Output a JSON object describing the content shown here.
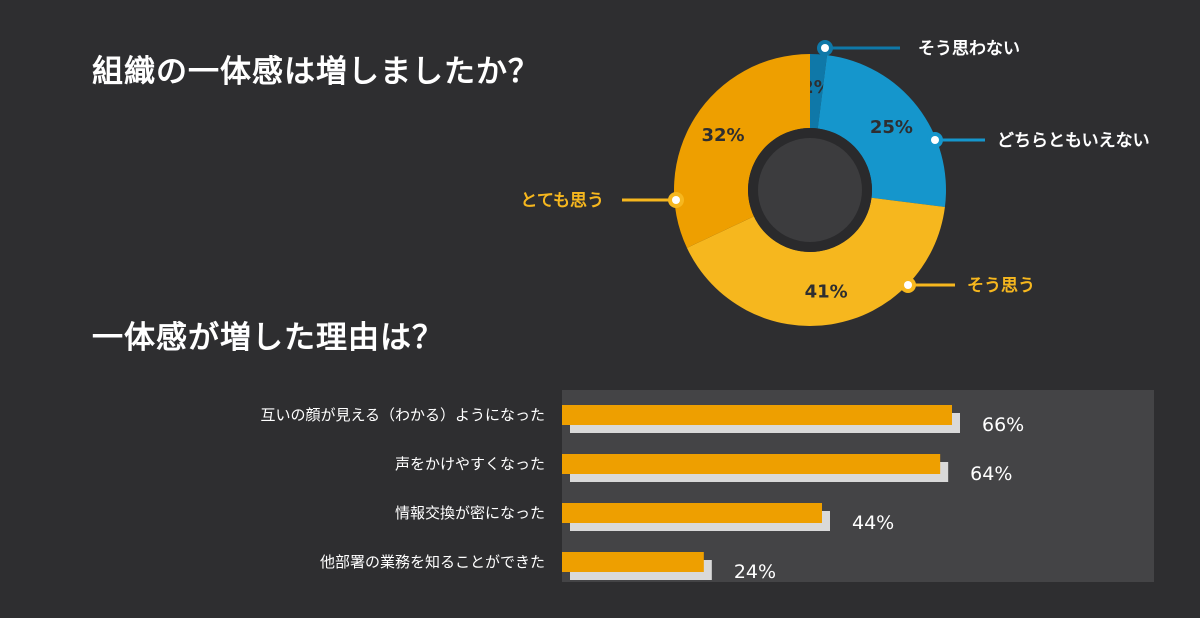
{
  "titles": {
    "q1": "組織の一体感は増しましたか？",
    "q2": "一体感が増した理由は？"
  },
  "colors": {
    "background": "#2e2e30",
    "panel": "#444446",
    "blue": "#1596cc",
    "blue_dark": "#0f78a8",
    "yellow": "#f6b71e",
    "orange": "#ee9f00",
    "bar_orange": "#ee9f00",
    "bar_shadow": "#d9d9d9",
    "hole": "#3c3c3e",
    "hole_ring": "#2a2a2c"
  },
  "chart_data": [
    {
      "type": "pie",
      "donut": true,
      "title": "組織の一体感は増しましたか？",
      "slices": [
        {
          "label": "そう思わない",
          "value": 2,
          "value_label": "2%",
          "color": "#0f78a8",
          "label_color": "#ffffff"
        },
        {
          "label": "どちらともいえない",
          "value": 25,
          "value_label": "25%",
          "color": "#1596cc",
          "label_color": "#ffffff"
        },
        {
          "label": "そう思う",
          "value": 41,
          "value_label": "41%",
          "color": "#f6b71e",
          "label_color": "#f6b71e"
        },
        {
          "label": "とても思う",
          "value": 32,
          "value_label": "32%",
          "color": "#ee9f00",
          "label_color": "#f6b71e"
        }
      ]
    },
    {
      "type": "bar",
      "orientation": "horizontal",
      "title": "一体感が増した理由は？",
      "categories": [
        "互いの顔が見える（わかる）ようになった",
        "声をかけやすくなった",
        "情報交換が密になった",
        "他部署の業務を知ることができた"
      ],
      "values": [
        66,
        64,
        44,
        24
      ],
      "value_labels": [
        "66%",
        "64%",
        "44%",
        "24%"
      ]
    }
  ]
}
